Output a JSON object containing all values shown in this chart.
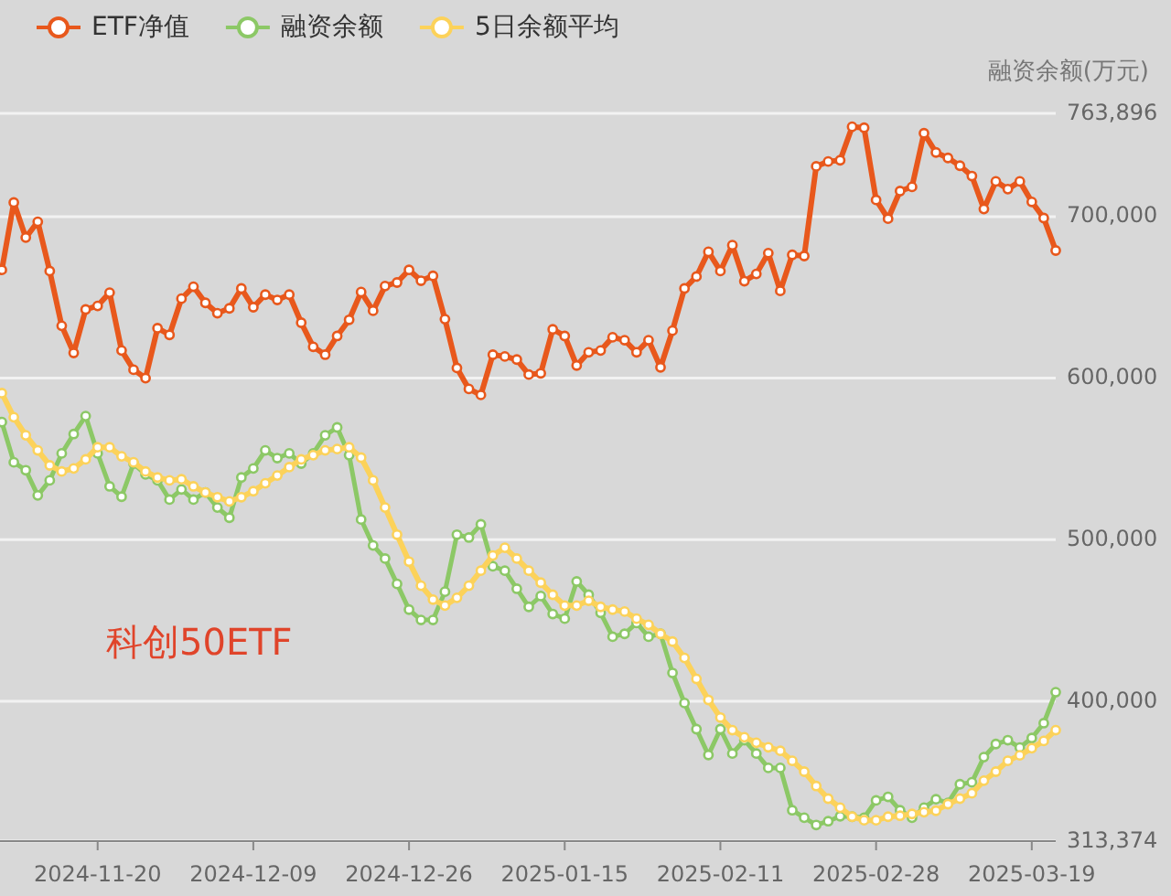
{
  "chart_data": {
    "type": "line",
    "categories": [
      null,
      null,
      null,
      null,
      null,
      null,
      null,
      null,
      "2024-11-20",
      null,
      null,
      null,
      null,
      null,
      null,
      null,
      null,
      null,
      null,
      null,
      null,
      "2024-12-09",
      null,
      null,
      null,
      null,
      null,
      null,
      null,
      null,
      null,
      null,
      null,
      null,
      "2024-12-26",
      null,
      null,
      null,
      null,
      null,
      null,
      null,
      null,
      null,
      null,
      null,
      null,
      "2025-01-15",
      null,
      null,
      null,
      null,
      null,
      null,
      null,
      null,
      null,
      null,
      null,
      null,
      "2025-02-11",
      null,
      null,
      null,
      null,
      null,
      null,
      null,
      null,
      null,
      null,
      null,
      null,
      "2025-02-28",
      null,
      null,
      null,
      null,
      null,
      null,
      null,
      null,
      null,
      null,
      null,
      null,
      "2025-03-19",
      null,
      null
    ],
    "series": [
      {
        "name": "ETF净值",
        "color": "#e8581c",
        "values": [
          667000,
          708700,
          687000,
          696800,
          666300,
          632400,
          615600,
          642500,
          644700,
          652900,
          617100,
          605200,
          600000,
          630900,
          626800,
          649200,
          656600,
          646600,
          640200,
          643200,
          655500,
          643900,
          651700,
          648400,
          651700,
          634300,
          619400,
          614500,
          626100,
          636100,
          653300,
          641700,
          657000,
          659200,
          667000,
          660300,
          663300,
          636500,
          606300,
          593300,
          589600,
          614500,
          613400,
          611500,
          602200,
          603000,
          630200,
          626100,
          607800,
          616000,
          617100,
          625300,
          623500,
          616000,
          623500,
          606700,
          629400,
          655500,
          662900,
          678200,
          666300,
          682300,
          660000,
          664500,
          677400,
          654000,
          676300,
          675600,
          731100,
          734100,
          734900,
          755600,
          755000,
          710300,
          698700,
          715800,
          718400,
          751600,
          739700,
          736300,
          731500,
          725100,
          704700,
          721800,
          717000,
          721800,
          709100,
          699100,
          679000
        ]
      },
      {
        "name": "融资余额",
        "color": "#8cc866",
        "values": [
          572800,
          547900,
          543000,
          527400,
          536700,
          553400,
          565400,
          576500,
          553400,
          533000,
          526600,
          547100,
          540400,
          536700,
          524800,
          531100,
          524800,
          529200,
          519900,
          513600,
          538500,
          544100,
          555300,
          550500,
          553400,
          547100,
          553400,
          564600,
          569500,
          552300,
          512500,
          496400,
          488300,
          472600,
          456700,
          450300,
          450300,
          467800,
          503100,
          501300,
          509500,
          483500,
          480800,
          469600,
          458400,
          465100,
          454000,
          451100,
          474100,
          465900,
          454700,
          439900,
          441700,
          448400,
          439900,
          441700,
          417500,
          398900,
          382700,
          366700,
          382700,
          367600,
          375900,
          367600,
          358700,
          358700,
          332500,
          327900,
          323400,
          325700,
          328800,
          328500,
          327900,
          338600,
          340800,
          332500,
          327900,
          334100,
          339300,
          337100,
          348600,
          349800,
          365400,
          373500,
          375900,
          371300,
          377200,
          386400,
          405600
        ]
      },
      {
        "name": "5日余额平均",
        "color": "#fcd25a",
        "values": [
          590700,
          575800,
          564600,
          555300,
          546000,
          542200,
          544100,
          549700,
          557200,
          557200,
          551600,
          547900,
          542200,
          538500,
          536700,
          537400,
          533000,
          529200,
          526300,
          523700,
          526300,
          530000,
          534900,
          539700,
          544900,
          549700,
          552300,
          555300,
          556100,
          557200,
          550800,
          536700,
          519900,
          503100,
          486400,
          471500,
          462900,
          459200,
          464000,
          471500,
          480800,
          490200,
          495000,
          488300,
          480800,
          473400,
          465900,
          459200,
          459200,
          462200,
          458400,
          456700,
          455500,
          451100,
          447300,
          441700,
          436900,
          426800,
          413800,
          400800,
          389900,
          382100,
          377700,
          374300,
          371500,
          369300,
          363100,
          356400,
          347500,
          339700,
          334100,
          328500,
          326300,
          326300,
          328500,
          329100,
          330200,
          331300,
          332200,
          336300,
          339700,
          343000,
          350800,
          356400,
          363100,
          366500,
          370900,
          375400,
          382100
        ]
      }
    ],
    "ylabel": "融资余额(万元)",
    "ylim": [
      313374,
      763896
    ],
    "yticks": [
      {
        "value": 313374,
        "label": "313,374"
      },
      {
        "value": 400000,
        "label": "400,000"
      },
      {
        "value": 500000,
        "label": "500,000"
      },
      {
        "value": 600000,
        "label": "600,000"
      },
      {
        "value": 700000,
        "label": "700,000"
      },
      {
        "value": 763896,
        "label": "763,896"
      }
    ],
    "annotations": [
      "科创50ETF"
    ],
    "legend": "top left",
    "grid": "y",
    "marker": "circle"
  }
}
